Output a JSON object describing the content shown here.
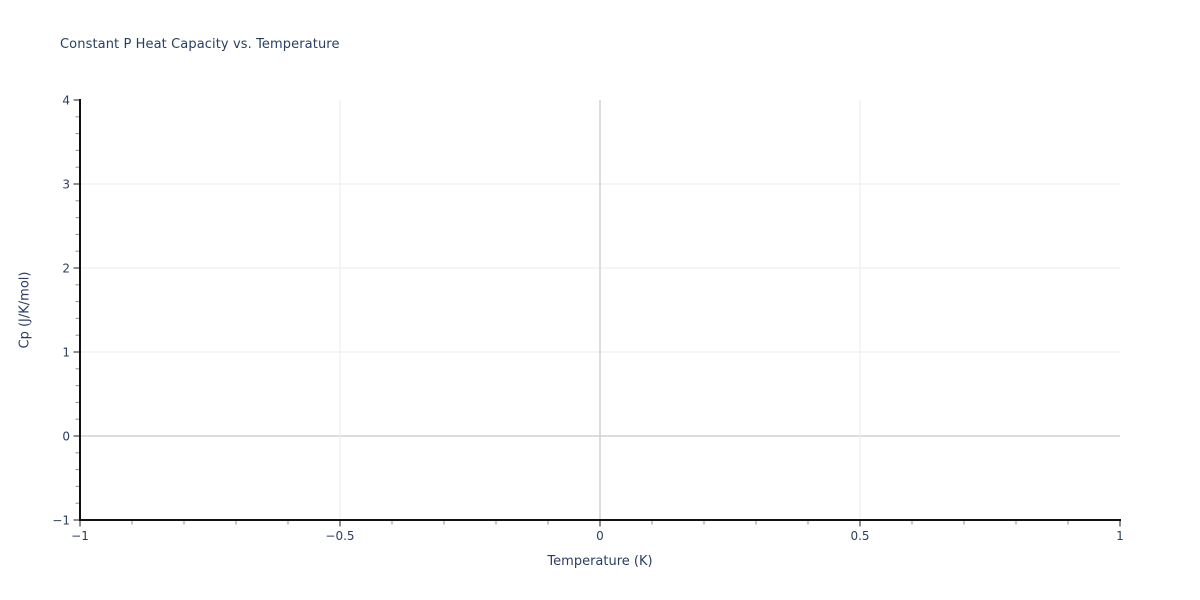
{
  "chart": {
    "title": "Constant P Heat Capacity vs. Temperature",
    "xlabel": "Temperature (K)",
    "ylabel": "Cp (J/K/mol)"
  },
  "chart_data": {
    "type": "line",
    "title": "Constant P Heat Capacity vs. Temperature",
    "xlabel": "Temperature (K)",
    "ylabel": "Cp (J/K/mol)",
    "series": [],
    "xlim": [
      -1,
      1
    ],
    "ylim": [
      -1,
      4
    ],
    "x_ticks": [
      -1,
      -0.5,
      0,
      0.5,
      1
    ],
    "x_tick_labels": [
      "−1",
      "−0.5",
      "0",
      "0.5",
      "1"
    ],
    "y_ticks": [
      -1,
      0,
      1,
      2,
      3,
      4
    ],
    "y_tick_labels": [
      "−1",
      "0",
      "1",
      "2",
      "3",
      "4"
    ],
    "x_minor_step": 0.1,
    "y_minor_step": 0.2,
    "grid": true,
    "zeroline": true,
    "legend": "none"
  },
  "colors": {
    "text": "#2a3f5f",
    "gridline": "#ebebeb",
    "zeroline": "#d2d2d2",
    "axis_line": "#111111",
    "tick": "#8f8f8f",
    "background": "#ffffff"
  }
}
